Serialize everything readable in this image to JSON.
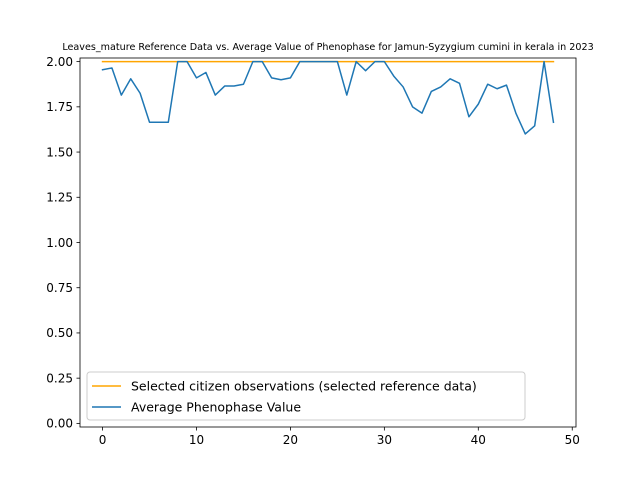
{
  "chart_data": {
    "type": "line",
    "title": "Leaves_mature Reference Data vs. Average Value of Phenophase for Jamun-Syzygium cumini in kerala in 2023",
    "xlabel": "",
    "ylabel": "",
    "xlim": [
      -2.4,
      50.4
    ],
    "ylim": [
      -0.02,
      2.02
    ],
    "xticks": [
      0,
      10,
      20,
      30,
      40,
      50
    ],
    "xtick_labels": [
      "0",
      "10",
      "20",
      "30",
      "40",
      "50"
    ],
    "yticks": [
      0.0,
      0.25,
      0.5,
      0.75,
      1.0,
      1.25,
      1.5,
      1.75,
      2.0
    ],
    "ytick_labels": [
      "0.00",
      "0.25",
      "0.50",
      "0.75",
      "1.00",
      "1.25",
      "1.50",
      "1.75",
      "2.00"
    ],
    "grid": false,
    "legend_position": "lower-left",
    "series": [
      {
        "name": "Selected citizen observations (selected reference data)",
        "color": "#ffa500",
        "x": [
          0,
          48
        ],
        "y": [
          2.0,
          2.0
        ]
      },
      {
        "name": "Average Phenophase Value",
        "color": "#1f77b4",
        "x": [
          0,
          1,
          2,
          3,
          4,
          5,
          6,
          7,
          8,
          9,
          10,
          11,
          12,
          13,
          14,
          15,
          16,
          17,
          18,
          19,
          20,
          21,
          22,
          23,
          24,
          25,
          26,
          27,
          28,
          29,
          30,
          31,
          32,
          33,
          34,
          35,
          36,
          37,
          38,
          39,
          40,
          41,
          42,
          43,
          44,
          45,
          46,
          47,
          48
        ],
        "y": [
          1.955,
          1.965,
          1.815,
          1.905,
          1.825,
          1.665,
          1.665,
          1.665,
          2.0,
          2.0,
          1.91,
          1.94,
          1.815,
          1.865,
          1.865,
          1.875,
          2.0,
          2.0,
          1.91,
          1.9,
          1.91,
          2.0,
          2.0,
          2.0,
          2.0,
          2.0,
          1.815,
          2.0,
          1.95,
          2.0,
          2.0,
          1.92,
          1.86,
          1.75,
          1.715,
          1.835,
          1.86,
          1.905,
          1.88,
          1.695,
          1.765,
          1.875,
          1.85,
          1.87,
          1.715,
          1.6,
          1.645,
          2.0,
          1.665
        ]
      }
    ]
  }
}
